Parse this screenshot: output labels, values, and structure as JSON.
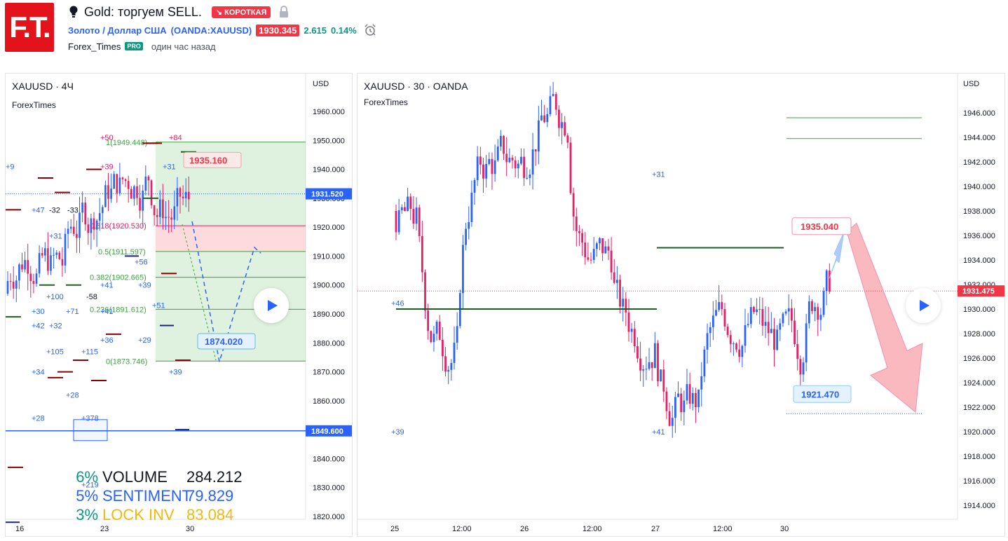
{
  "header": {
    "logo_text": "F.T.",
    "idea_title": "Gold: торгуем SELL.",
    "direction_badge": "↘ КОРОТКАЯ",
    "symbol_name": "Золото / Доллар США",
    "symbol_code": "(OANDA:XAUUSD)",
    "last_price": "1930.345",
    "change": "2.615",
    "change_pct": "0.14%",
    "author": "Forex_Times",
    "pro_badge": "PRO",
    "time_ago": "один час назад"
  },
  "left_chart": {
    "title": "XAUUSD · 4Ч",
    "subtitle": "ForexTimes",
    "currency": "USD",
    "y_ticks": [
      "1960.000",
      "1950.000",
      "1940.000",
      "1930.000",
      "1920.000",
      "1910.000",
      "1900.000",
      "1890.000",
      "1880.000",
      "1870.000",
      "1860.000",
      "1850.000",
      "1840.000",
      "1830.000",
      "1820.000"
    ],
    "x_ticks": [
      "16",
      "23",
      "30"
    ],
    "price_tags": [
      {
        "value": "1931.520",
        "color": "#2962ff"
      },
      {
        "value": "1849.600",
        "color": "#2962ff"
      }
    ],
    "callouts": [
      {
        "value": "1935.160",
        "color": "#f23645"
      },
      {
        "value": "1874.020",
        "color": "#2962ff"
      }
    ],
    "fib_levels": [
      {
        "label": "0.618(1920.530)",
        "color": "#e91e63"
      },
      {
        "label": "0.5(1911.597)",
        "color": "#43a047"
      },
      {
        "label": "0.382(1902.665)",
        "color": "#43a047"
      },
      {
        "label": "0.236(1891.612)",
        "color": "#43a047"
      },
      {
        "label": "0(1873.746)",
        "color": "#43a047"
      },
      {
        "label": "1(1949.448)",
        "color": "#43a047"
      }
    ],
    "markers": [
      "+84",
      "+50",
      "+39",
      "+31",
      "+47",
      "-32",
      "-33",
      "+31",
      "+9",
      "+100",
      "-58",
      "+30",
      "+71",
      "+42",
      "+32",
      "+105",
      "+115",
      "+34",
      "+28",
      "+28",
      "+378",
      "+219",
      "+56",
      "+39",
      "+41",
      "+51",
      "+41",
      "+36",
      "+29",
      "+39"
    ],
    "stats": [
      {
        "pct": "6%",
        "label": "VOLUME",
        "value": "284.212",
        "color": "#089981",
        "label_color": "#131722"
      },
      {
        "pct": "5%",
        "label": "SENTIMENT",
        "value": "79.829",
        "color": "#2962ff",
        "label_color": "#2962ff"
      },
      {
        "pct": "3%",
        "label": "LOCK INV",
        "value": "83.084",
        "color": "#089981",
        "label_color": "#f0b90b"
      }
    ]
  },
  "right_chart": {
    "title": "XAUUSD · 30 · OANDA",
    "subtitle": "ForexTimes",
    "currency": "USD",
    "y_ticks": [
      "1946.000",
      "1944.000",
      "1942.000",
      "1940.000",
      "1938.000",
      "1936.000",
      "1934.000",
      "1932.000",
      "1930.000",
      "1928.000",
      "1926.000",
      "1924.000",
      "1922.000",
      "1920.000",
      "1918.000",
      "1916.000",
      "1914.000"
    ],
    "x_ticks": [
      "25",
      "12:00",
      "26",
      "12:00",
      "27",
      "12:00",
      "30"
    ],
    "price_tag": {
      "value": "1931.475",
      "color": "#f23645"
    },
    "callouts": [
      {
        "value": "1935.040",
        "color": "#f23645"
      },
      {
        "value": "1921.470",
        "color": "#2962ff"
      }
    ],
    "markers": [
      "+31",
      "+46",
      "+39",
      "+41"
    ]
  },
  "icons": {
    "bulb": "lightbulb-icon",
    "lock": "lock-icon",
    "alarm": "alarm-clock-icon",
    "play": "play-icon"
  },
  "colors": {
    "up": "#2962ff",
    "down": "#e91e63",
    "short": "#f23645",
    "green": "#089981"
  }
}
